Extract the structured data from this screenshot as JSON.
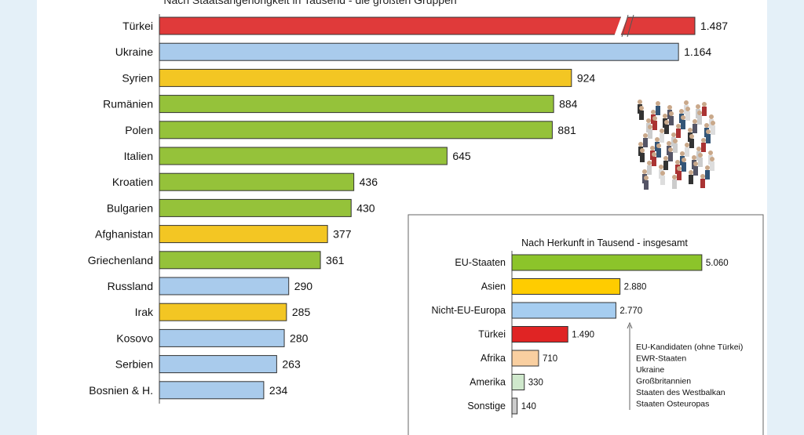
{
  "chart_data": [
    {
      "type": "bar",
      "orientation": "horizontal",
      "title": "Nach Staatsangehörigkeit in Tausend - die größten Gruppen",
      "categories": [
        "Türkei",
        "Ukraine",
        "Syrien",
        "Rumänien",
        "Polen",
        "Italien",
        "Kroatien",
        "Bulgarien",
        "Afghanistan",
        "Griechenland",
        "Russland",
        "Irak",
        "Kosovo",
        "Serbien",
        "Bosnien & H."
      ],
      "values": [
        1487,
        1164,
        924,
        884,
        881,
        645,
        436,
        430,
        377,
        361,
        290,
        285,
        280,
        263,
        234
      ],
      "labels": [
        "1.487",
        "1.164",
        "924",
        "884",
        "881",
        "645",
        "436",
        "430",
        "377",
        "361",
        "290",
        "285",
        "280",
        "263",
        "234"
      ],
      "colors": [
        "#e03a3a",
        "#a9cbec",
        "#f3c623",
        "#95c23a",
        "#95c23a",
        "#95c23a",
        "#95c23a",
        "#95c23a",
        "#f3c623",
        "#95c23a",
        "#a9cbec",
        "#f3c623",
        "#a9cbec",
        "#a9cbec",
        "#a9cbec"
      ],
      "axis_break_on": "Türkei"
    },
    {
      "type": "bar",
      "orientation": "horizontal",
      "title": "Nach Herkunft in Tausend - insgesamt",
      "categories": [
        "EU-Staaten",
        "Asien",
        "Nicht-EU-Europa",
        "Türkei",
        "Afrika",
        "Amerika",
        "Sonstige"
      ],
      "values": [
        5060,
        2880,
        2770,
        1490,
        710,
        330,
        140
      ],
      "labels": [
        "5.060",
        "2.880",
        "2.770",
        "1.490",
        "710",
        "330",
        "140"
      ],
      "colors": [
        "#8cc42a",
        "#ffcc00",
        "#a6cdf0",
        "#e02424",
        "#f9cfa0",
        "#cfe8cc",
        "#cccccc"
      ],
      "annotation": [
        "EU-Kandidaten (ohne Türkei)",
        "EWR-Staaten",
        "Ukraine",
        "Großbritannien",
        "Staaten des Westbalkan",
        "Staaten Osteuropas"
      ]
    }
  ]
}
